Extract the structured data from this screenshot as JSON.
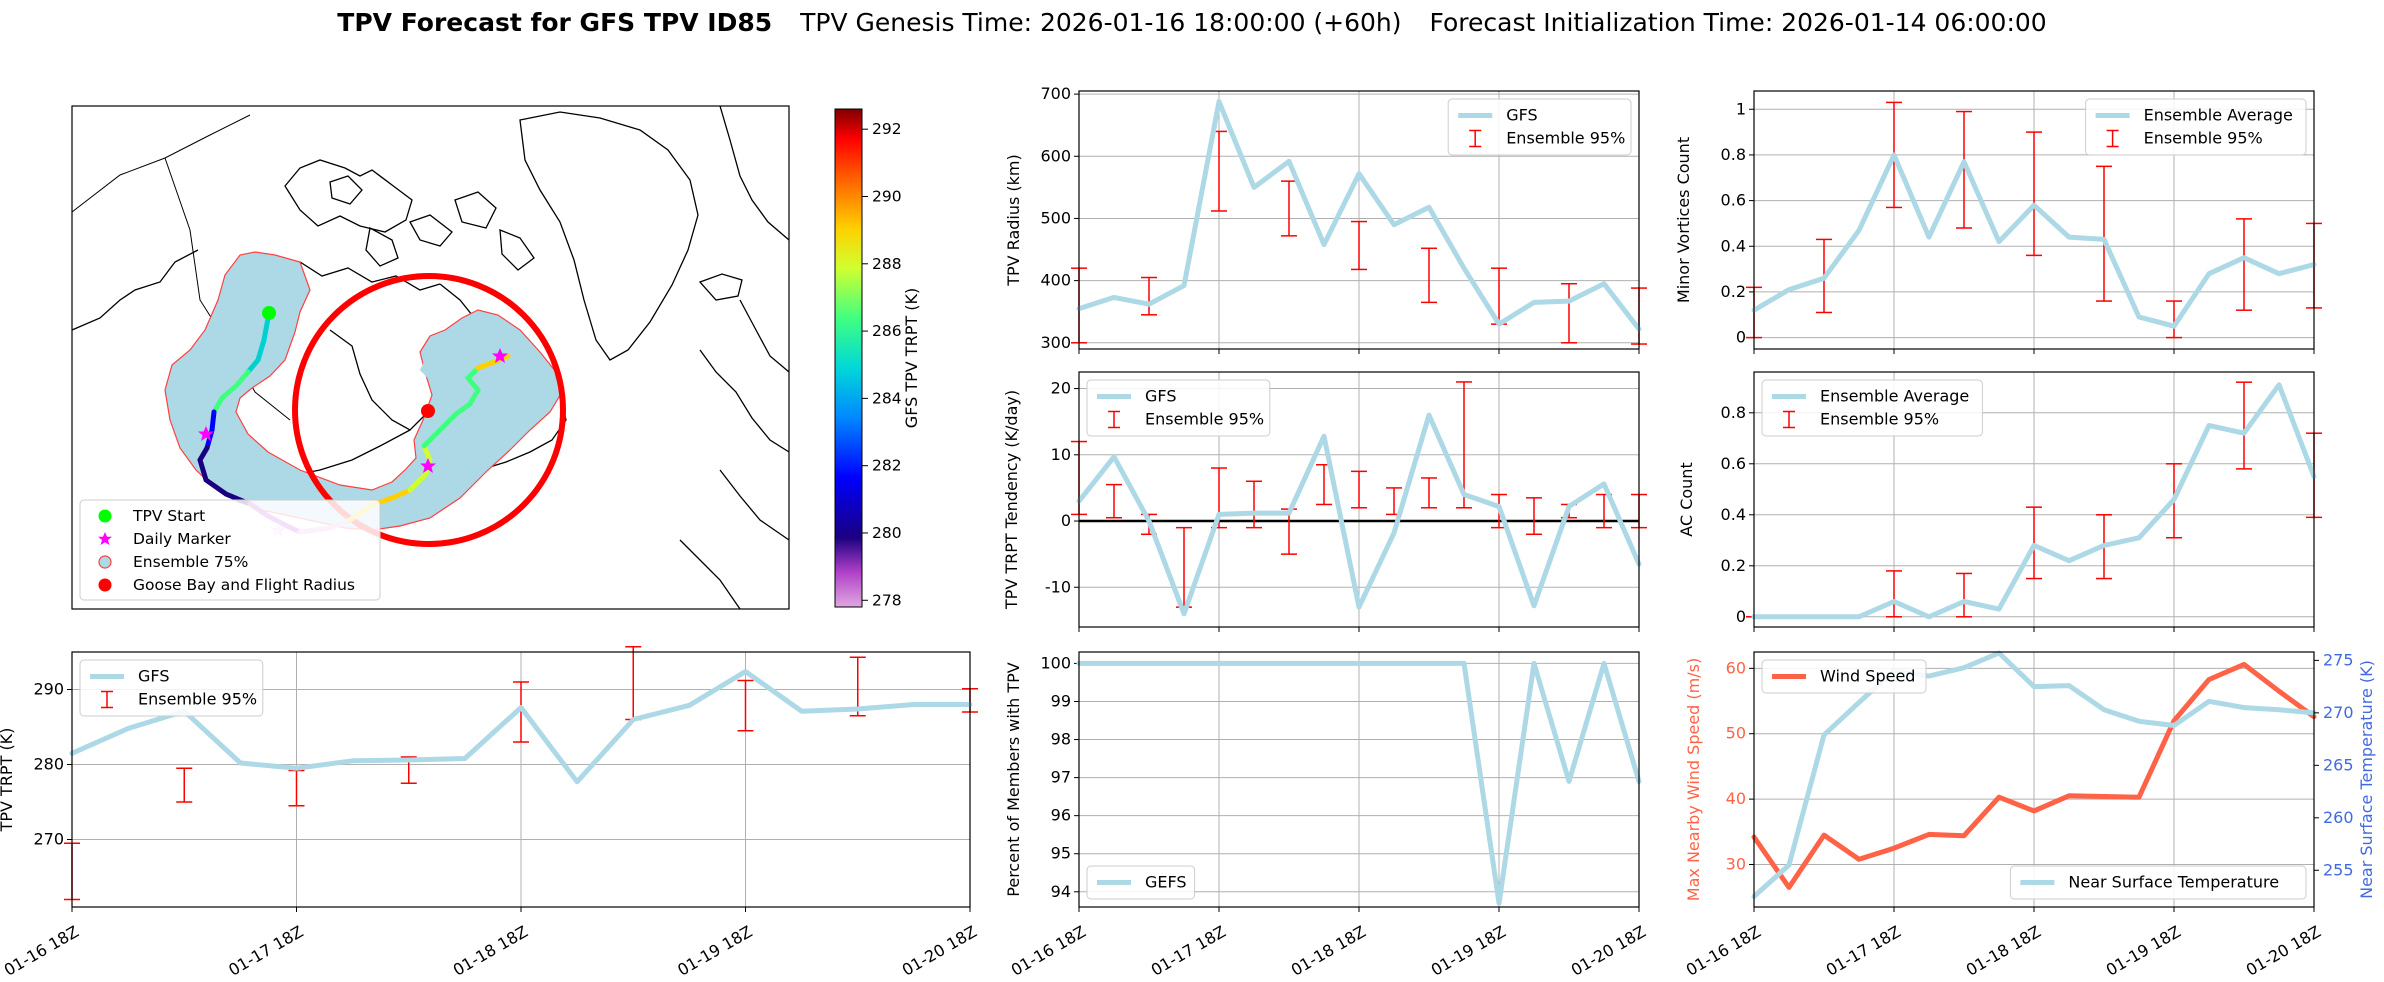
{
  "figure": {
    "title_bold": "TPV Forecast for GFS TPV ID85",
    "title_genesis": "TPV Genesis Time: 2026-01-16 18:00:00 (+60h)",
    "title_init": "Forecast Initialization Time: 2026-01-14 06:00:00"
  },
  "colors": {
    "gfs_line": "#add8e6",
    "ensemble_err": "#ff0000",
    "wind": "#ff6347",
    "temp_axis": "#4169e1",
    "zero_line": "#000000",
    "grid": "#b0b0b0"
  },
  "map": {
    "colorbar": {
      "label": "GFS TPV TRPT (K)",
      "ticks": [
        278,
        280,
        282,
        284,
        286,
        288,
        290,
        292
      ],
      "range": [
        277.8,
        292.6
      ]
    },
    "legend": [
      {
        "label": "TPV Start",
        "marker": "circle",
        "color": "#00ff00"
      },
      {
        "label": "Daily Marker",
        "marker": "star",
        "color": "#ff00ff"
      },
      {
        "label": "Ensemble 75%",
        "marker": "circle-outline",
        "color": "#add8e6"
      },
      {
        "label": "Goose Bay and Flight Radius",
        "marker": "circle",
        "color": "#ff0000"
      }
    ]
  },
  "chart_data": [
    {
      "id": "radius",
      "type": "line",
      "ylabel": "TPV Radius (km)",
      "ylim": [
        290,
        705
      ],
      "yticks": [
        300,
        400,
        500,
        600,
        700
      ],
      "series": [
        {
          "name": "GFS",
          "values": [
            355,
            373,
            362,
            392,
            688,
            550,
            592,
            458,
            572,
            490,
            518,
            420,
            330,
            365,
            367,
            395,
            322
          ]
        }
      ],
      "errorbars": {
        "name": "Ensemble 95%",
        "x": [
          0,
          2,
          4,
          6,
          8,
          10,
          12,
          14,
          16
        ],
        "low": [
          300,
          345,
          512,
          472,
          418,
          365,
          330,
          300,
          298
        ],
        "high": [
          420,
          405,
          640,
          560,
          495,
          452,
          420,
          395,
          388
        ]
      },
      "legend": [
        "GFS",
        "Ensemble 95%"
      ],
      "legend_pos": "upper right"
    },
    {
      "id": "minor",
      "type": "line",
      "ylabel": "Minor Vortices Count",
      "ylim": [
        -0.05,
        1.08
      ],
      "yticks": [
        0.0,
        0.2,
        0.4,
        0.6,
        0.8,
        1.0
      ],
      "series": [
        {
          "name": "Ensemble Average",
          "values": [
            0.12,
            0.21,
            0.26,
            0.47,
            0.8,
            0.44,
            0.77,
            0.42,
            0.58,
            0.44,
            0.43,
            0.09,
            0.05,
            0.28,
            0.35,
            0.28,
            0.32
          ]
        }
      ],
      "errorbars": {
        "name": "Ensemble 95%",
        "x": [
          0,
          2,
          4,
          6,
          8,
          10,
          12,
          14,
          16
        ],
        "low": [
          0.0,
          0.11,
          0.57,
          0.48,
          0.36,
          0.16,
          0.0,
          0.12,
          0.13
        ],
        "high": [
          0.22,
          0.43,
          1.03,
          0.99,
          0.9,
          0.75,
          0.16,
          0.52,
          0.5
        ]
      },
      "legend": [
        "Ensemble Average",
        "Ensemble 95%"
      ],
      "legend_pos": "upper right"
    },
    {
      "id": "tendency",
      "type": "line",
      "ylabel": "TPV TRPT Tendency (K/day)",
      "ylim": [
        -16,
        22.5
      ],
      "yticks": [
        -10,
        0,
        10,
        20
      ],
      "zero_line": true,
      "series": [
        {
          "name": "GFS",
          "values": [
            3,
            9.7,
            0,
            -14,
            1,
            1.2,
            1.2,
            12.8,
            -13,
            -1.8,
            16,
            4,
            2.2,
            -12.8,
            2.2,
            5.6,
            -6.5
          ]
        }
      ],
      "errorbars": {
        "name": "Ensemble 95%",
        "x": [
          0,
          1,
          2,
          3,
          4,
          5,
          6,
          7,
          8,
          9,
          10,
          11,
          12,
          13,
          14,
          15,
          16
        ],
        "low": [
          1,
          0.5,
          -2,
          -13,
          -1,
          -1,
          -5,
          2.5,
          2,
          1,
          2,
          2,
          -1,
          -2,
          0.5,
          -1,
          -1
        ],
        "high": [
          12,
          5.5,
          1,
          -1,
          8,
          6,
          1.8,
          8.5,
          7.5,
          5,
          6.5,
          21,
          4,
          3.5,
          2.5,
          4,
          4
        ]
      },
      "legend": [
        "GFS",
        "Ensemble 95%"
      ],
      "legend_pos": "upper left"
    },
    {
      "id": "ac",
      "type": "line",
      "ylabel": "AC Count",
      "ylim": [
        -0.04,
        0.96
      ],
      "yticks": [
        0.0,
        0.2,
        0.4,
        0.6,
        0.8
      ],
      "series": [
        {
          "name": "Ensemble Average",
          "values": [
            0,
            0,
            0,
            0,
            0.06,
            0,
            0.06,
            0.03,
            0.28,
            0.22,
            0.28,
            0.31,
            0.46,
            0.75,
            0.72,
            0.91,
            0.55
          ]
        }
      ],
      "errorbars": {
        "name": "Ensemble 95%",
        "x": [
          0,
          2,
          4,
          6,
          8,
          10,
          12,
          14,
          16
        ],
        "low": [
          0,
          0,
          0,
          0,
          0.15,
          0.15,
          0.31,
          0.58,
          0.39
        ],
        "high": [
          0,
          0,
          0.18,
          0.17,
          0.43,
          0.4,
          0.6,
          0.92,
          0.72
        ]
      },
      "legend": [
        "Ensemble Average",
        "Ensemble 95%"
      ],
      "legend_pos": "upper left"
    },
    {
      "id": "trpt",
      "type": "line",
      "ylabel": "TPV TRPT (K)",
      "ylim": [
        261,
        295
      ],
      "yticks": [
        270,
        280,
        290
      ],
      "xticks": [
        "01-16 18Z",
        "01-17 18Z",
        "01-18 18Z",
        "01-19 18Z",
        "01-20 18Z"
      ],
      "series": [
        {
          "name": "GFS",
          "values": [
            281.5,
            284.8,
            287.1,
            280.2,
            279.5,
            280.5,
            280.6,
            280.8,
            287.6,
            277.7,
            286.0,
            287.9,
            292.4,
            287.1,
            287.4,
            288.0,
            288.0
          ]
        }
      ],
      "errorbars": {
        "name": "Ensemble 95%",
        "x": [
          0,
          2,
          4,
          6,
          8,
          10,
          12,
          14,
          16
        ],
        "low": [
          262,
          275,
          274.5,
          277.5,
          283,
          286,
          284.5,
          286.5,
          287
        ],
        "high": [
          269.5,
          279.5,
          279.2,
          281,
          291,
          295.7,
          291.2,
          294.3,
          290.1
        ]
      },
      "legend": [
        "GFS",
        "Ensemble 95%"
      ],
      "legend_pos": "upper left"
    },
    {
      "id": "percent",
      "type": "line",
      "ylabel": "Percent of Members with TPV",
      "ylim": [
        93.6,
        100.3
      ],
      "yticks": [
        94,
        95,
        96,
        97,
        98,
        99,
        100
      ],
      "xticks": [
        "01-16 18Z",
        "01-17 18Z",
        "01-18 18Z",
        "01-19 18Z",
        "01-20 18Z"
      ],
      "series": [
        {
          "name": "GEFS",
          "values": [
            100,
            100,
            100,
            100,
            100,
            100,
            100,
            100,
            100,
            100,
            100,
            100,
            93.7,
            100,
            96.9,
            100,
            96.9
          ]
        }
      ],
      "legend": [
        "GEFS"
      ],
      "legend_pos": "lower left"
    },
    {
      "id": "wind_temp",
      "type": "line",
      "ylabel_left": "Max Nearby Wind Speed (m/s)",
      "ylabel_right": "Near Surface Temperature (K)",
      "ylim_left": [
        23.5,
        62.5
      ],
      "yticks_left": [
        30,
        40,
        50,
        60
      ],
      "ylim_right": [
        251.5,
        275.8
      ],
      "yticks_right": [
        255,
        260,
        265,
        270,
        275
      ],
      "xticks": [
        "01-16 18Z",
        "01-17 18Z",
        "01-18 18Z",
        "01-19 18Z",
        "01-20 18Z"
      ],
      "series": [
        {
          "name": "Wind Speed",
          "axis": "left",
          "values": [
            34.2,
            26.5,
            34.5,
            30.8,
            32.5,
            34.6,
            34.4,
            40.3,
            38.2,
            40.5,
            40.4,
            40.3,
            52.0,
            58.3,
            60.6,
            56.5,
            52.6
          ]
        },
        {
          "name": "Near Surface Temperature",
          "axis": "right",
          "values": [
            252.5,
            255.5,
            267.9,
            271.0,
            274.0,
            273.5,
            274.3,
            275.7,
            272.5,
            272.6,
            270.3,
            269.2,
            268.8,
            271.1,
            270.5,
            270.3,
            270.0
          ]
        }
      ],
      "legend_left": [
        "Wind Speed"
      ],
      "legend_right": [
        "Near Surface Temperature"
      ]
    }
  ]
}
